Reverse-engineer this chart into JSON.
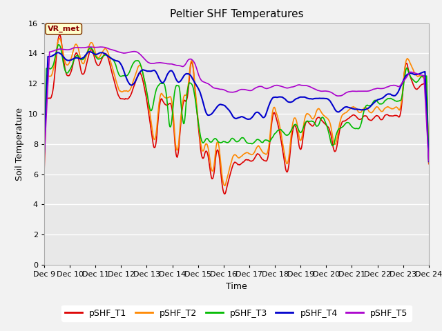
{
  "title": "Peltier SHF Temperatures",
  "xlabel": "Time",
  "ylabel": "Soil Temperature",
  "xlim": [
    0,
    360
  ],
  "ylim": [
    0,
    16
  ],
  "yticks": [
    0,
    2,
    4,
    6,
    8,
    10,
    12,
    14,
    16
  ],
  "xtick_labels": [
    "Dec 9",
    "Dec 10",
    "Dec 11",
    "Dec 12",
    "Dec 13",
    "Dec 14",
    "Dec 15",
    "Dec 16",
    "Dec 17",
    "Dec 18",
    "Dec 19",
    "Dec 20",
    "Dec 21",
    "Dec 22",
    "Dec 23",
    "Dec 24"
  ],
  "xtick_positions": [
    0,
    24,
    48,
    72,
    96,
    120,
    144,
    168,
    192,
    216,
    240,
    264,
    288,
    312,
    336,
    360
  ],
  "legend_labels": [
    "pSHF_T1",
    "pSHF_T2",
    "pSHF_T3",
    "pSHF_T4",
    "pSHF_T5"
  ],
  "line_colors": [
    "#dd0000",
    "#ff8800",
    "#00bb00",
    "#0000cc",
    "#aa00cc"
  ],
  "line_widths": [
    1.2,
    1.2,
    1.2,
    1.5,
    1.2
  ],
  "annotation_text": "VR_met",
  "background_color": "#e8e8e8",
  "grid_color": "#ffffff",
  "fig_bg_color": "#f2f2f2",
  "title_fontsize": 11,
  "label_fontsize": 9,
  "tick_fontsize": 8,
  "legend_fontsize": 9
}
